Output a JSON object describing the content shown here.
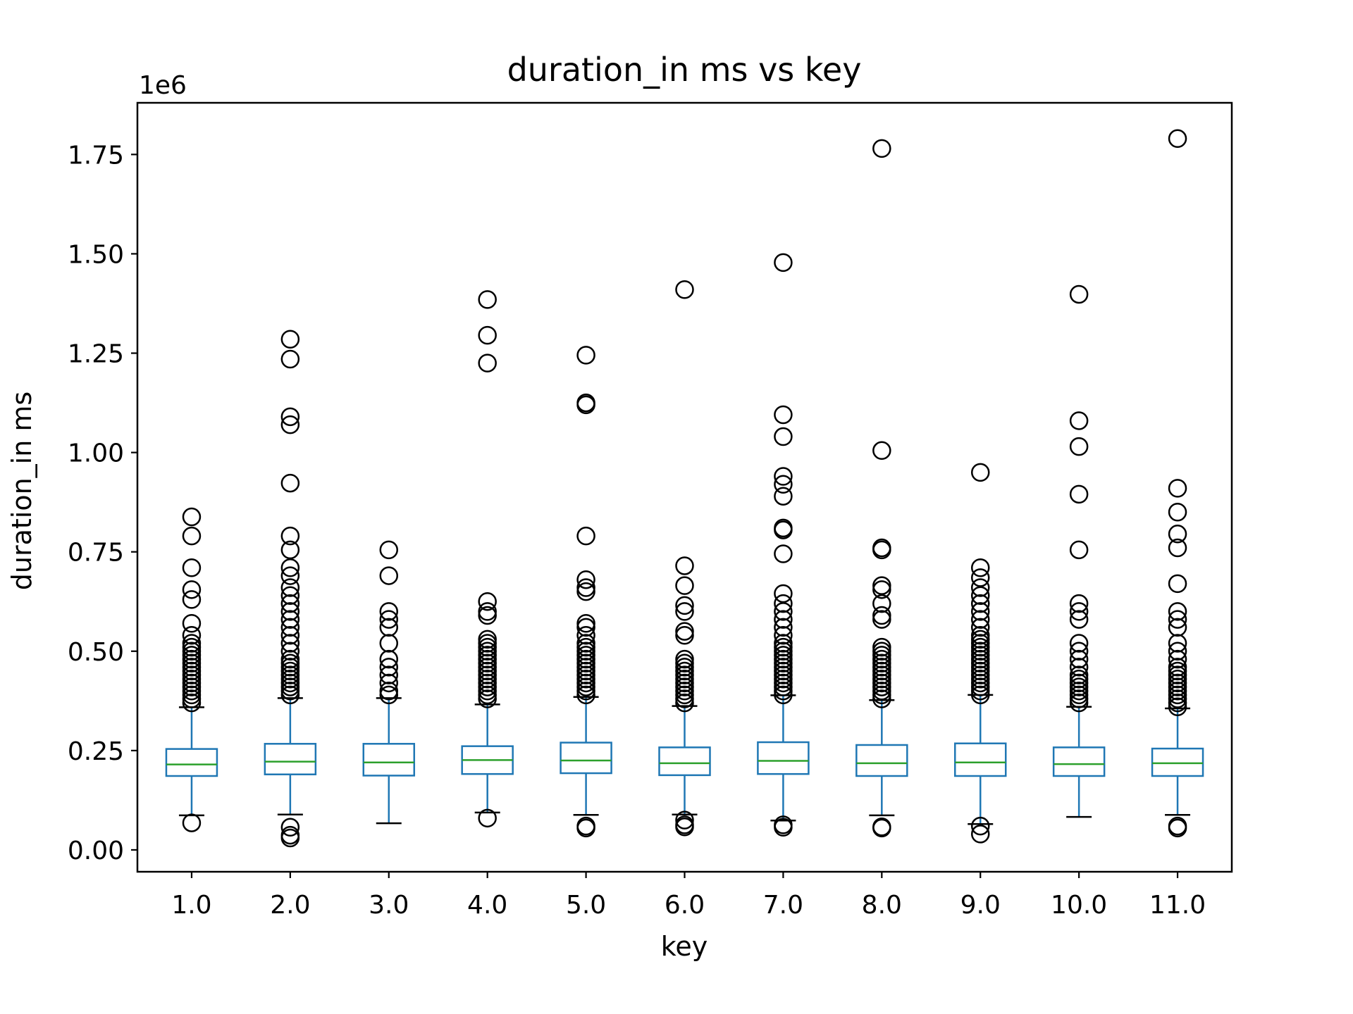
{
  "chart_data": {
    "type": "boxplot",
    "title": "duration_in ms vs key",
    "xlabel": "key",
    "ylabel": "duration_in ms",
    "y_scale_multiplier": "1e6",
    "ylim": [
      -0.055,
      1.88
    ],
    "y_ticks": [
      0.0,
      0.25,
      0.5,
      0.75,
      1.0,
      1.25,
      1.5,
      1.75
    ],
    "y_tick_labels": [
      "0.00",
      "0.25",
      "0.50",
      "0.75",
      "1.00",
      "1.25",
      "1.50",
      "1.75"
    ],
    "grid": false,
    "legend": "none",
    "colors": {
      "box": "#1f77b4",
      "median": "#2ca02c",
      "whisker": "#1f77b4",
      "cap": "#000000",
      "flier": "#000000"
    },
    "categories": [
      "1.0",
      "2.0",
      "3.0",
      "4.0",
      "5.0",
      "6.0",
      "7.0",
      "8.0",
      "9.0",
      "10.0",
      "11.0"
    ],
    "boxes": [
      {
        "whislo": 0.087,
        "q1": 0.186,
        "med": 0.215,
        "q3": 0.254,
        "whishi": 0.359,
        "fliers": [
          0.068,
          0.37,
          0.38,
          0.39,
          0.4,
          0.41,
          0.42,
          0.43,
          0.44,
          0.45,
          0.46,
          0.47,
          0.48,
          0.49,
          0.5,
          0.51,
          0.52,
          0.54,
          0.57,
          0.63,
          0.655,
          0.71,
          0.79,
          0.838
        ]
      },
      {
        "whislo": 0.089,
        "q1": 0.19,
        "med": 0.222,
        "q3": 0.267,
        "whishi": 0.382,
        "fliers": [
          0.03,
          0.037,
          0.057,
          0.39,
          0.4,
          0.41,
          0.42,
          0.43,
          0.44,
          0.45,
          0.46,
          0.47,
          0.48,
          0.5,
          0.52,
          0.54,
          0.56,
          0.58,
          0.6,
          0.62,
          0.64,
          0.66,
          0.69,
          0.71,
          0.755,
          0.79,
          0.923,
          1.07,
          1.09,
          1.235,
          1.285
        ]
      },
      {
        "whislo": 0.067,
        "q1": 0.187,
        "med": 0.22,
        "q3": 0.267,
        "whishi": 0.382,
        "fliers": [
          0.39,
          0.4,
          0.42,
          0.44,
          0.46,
          0.48,
          0.52,
          0.56,
          0.58,
          0.6,
          0.69,
          0.755
        ]
      },
      {
        "whislo": 0.094,
        "q1": 0.191,
        "med": 0.226,
        "q3": 0.261,
        "whishi": 0.366,
        "fliers": [
          0.08,
          0.38,
          0.39,
          0.4,
          0.41,
          0.42,
          0.43,
          0.44,
          0.45,
          0.46,
          0.47,
          0.48,
          0.49,
          0.5,
          0.51,
          0.52,
          0.53,
          0.59,
          0.6,
          0.625,
          1.225,
          1.295,
          1.385
        ]
      },
      {
        "whislo": 0.088,
        "q1": 0.193,
        "med": 0.225,
        "q3": 0.27,
        "whishi": 0.385,
        "fliers": [
          0.055,
          0.06,
          0.39,
          0.4,
          0.41,
          0.42,
          0.43,
          0.44,
          0.45,
          0.46,
          0.47,
          0.48,
          0.49,
          0.5,
          0.51,
          0.52,
          0.54,
          0.56,
          0.57,
          0.65,
          0.66,
          0.68,
          0.79,
          1.12,
          1.125,
          1.245
        ]
      },
      {
        "whislo": 0.089,
        "q1": 0.188,
        "med": 0.218,
        "q3": 0.258,
        "whishi": 0.362,
        "fliers": [
          0.058,
          0.063,
          0.075,
          0.37,
          0.38,
          0.39,
          0.4,
          0.41,
          0.42,
          0.43,
          0.44,
          0.45,
          0.46,
          0.47,
          0.48,
          0.54,
          0.55,
          0.6,
          0.615,
          0.665,
          0.715,
          1.41
        ]
      },
      {
        "whislo": 0.074,
        "q1": 0.191,
        "med": 0.224,
        "q3": 0.271,
        "whishi": 0.389,
        "fliers": [
          0.057,
          0.063,
          0.39,
          0.4,
          0.41,
          0.42,
          0.43,
          0.44,
          0.45,
          0.46,
          0.47,
          0.48,
          0.49,
          0.5,
          0.51,
          0.52,
          0.54,
          0.56,
          0.58,
          0.6,
          0.62,
          0.645,
          0.745,
          0.805,
          0.81,
          0.89,
          0.92,
          0.94,
          1.04,
          1.095,
          1.478
        ]
      },
      {
        "whislo": 0.087,
        "q1": 0.186,
        "med": 0.218,
        "q3": 0.264,
        "whishi": 0.377,
        "fliers": [
          0.055,
          0.058,
          0.38,
          0.39,
          0.4,
          0.41,
          0.42,
          0.43,
          0.44,
          0.45,
          0.46,
          0.47,
          0.48,
          0.49,
          0.5,
          0.51,
          0.58,
          0.59,
          0.62,
          0.655,
          0.665,
          0.755,
          0.76,
          1.005,
          1.765
        ]
      },
      {
        "whislo": 0.065,
        "q1": 0.186,
        "med": 0.22,
        "q3": 0.268,
        "whishi": 0.39,
        "fliers": [
          0.04,
          0.06,
          0.39,
          0.4,
          0.41,
          0.42,
          0.43,
          0.44,
          0.45,
          0.46,
          0.47,
          0.48,
          0.49,
          0.5,
          0.51,
          0.52,
          0.53,
          0.54,
          0.56,
          0.58,
          0.6,
          0.62,
          0.64,
          0.66,
          0.685,
          0.71,
          0.95
        ]
      },
      {
        "whislo": 0.083,
        "q1": 0.186,
        "med": 0.216,
        "q3": 0.258,
        "whishi": 0.36,
        "fliers": [
          0.37,
          0.38,
          0.39,
          0.4,
          0.41,
          0.42,
          0.43,
          0.44,
          0.46,
          0.48,
          0.5,
          0.52,
          0.58,
          0.6,
          0.62,
          0.755,
          0.895,
          1.015,
          1.08,
          1.398
        ]
      },
      {
        "whislo": 0.088,
        "q1": 0.186,
        "med": 0.218,
        "q3": 0.255,
        "whishi": 0.356,
        "fliers": [
          0.055,
          0.06,
          0.36,
          0.37,
          0.38,
          0.39,
          0.4,
          0.41,
          0.42,
          0.43,
          0.44,
          0.45,
          0.46,
          0.48,
          0.5,
          0.52,
          0.56,
          0.58,
          0.6,
          0.67,
          0.76,
          0.795,
          0.85,
          0.91,
          1.79
        ]
      }
    ]
  }
}
